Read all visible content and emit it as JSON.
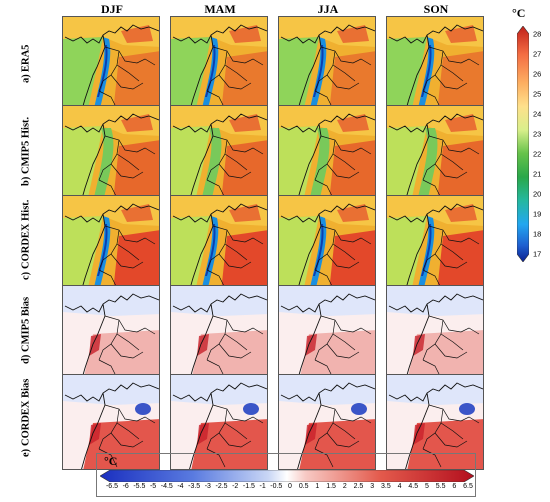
{
  "columns": [
    "DJF",
    "MAM",
    "JJA",
    "SON"
  ],
  "rows": [
    {
      "letter": "a)",
      "name": "ERA5"
    },
    {
      "letter": "b)",
      "name": "CMIP5 Hist."
    },
    {
      "letter": "c)",
      "name": "CORDEX Hist."
    },
    {
      "letter": "d)",
      "name": "CMIP5 Bias"
    },
    {
      "letter": "e)",
      "name": "CORDEX Bias"
    }
  ],
  "temperature_colorbar": {
    "unit": "°C",
    "ticks": [
      "28",
      "27",
      "26",
      "25",
      "24",
      "23",
      "22",
      "21",
      "20",
      "19",
      "18",
      "17"
    ],
    "colors": [
      "#d7301f",
      "#f46d43",
      "#fdae61",
      "#fee08b",
      "#d9ef8b",
      "#a6d96a",
      "#66bd63",
      "#1a9850",
      "#35b779",
      "#22a7f0",
      "#1f78b4",
      "#08306b"
    ]
  },
  "bias_colorbar": {
    "unit": "°C",
    "ticks": [
      "-6.5",
      "-6",
      "-5.5",
      "-5",
      "-4.5",
      "-4",
      "-3.5",
      "-3",
      "-2.5",
      "-2",
      "-1.5",
      "-1",
      "-0.5",
      "0",
      "0.5",
      "1",
      "1.5",
      "2",
      "2.5",
      "3",
      "3.5",
      "4",
      "4.5",
      "5",
      "5.5",
      "6",
      "6.5"
    ],
    "neg_color": "#1f3fbf",
    "pos_color": "#c8102e"
  }
}
